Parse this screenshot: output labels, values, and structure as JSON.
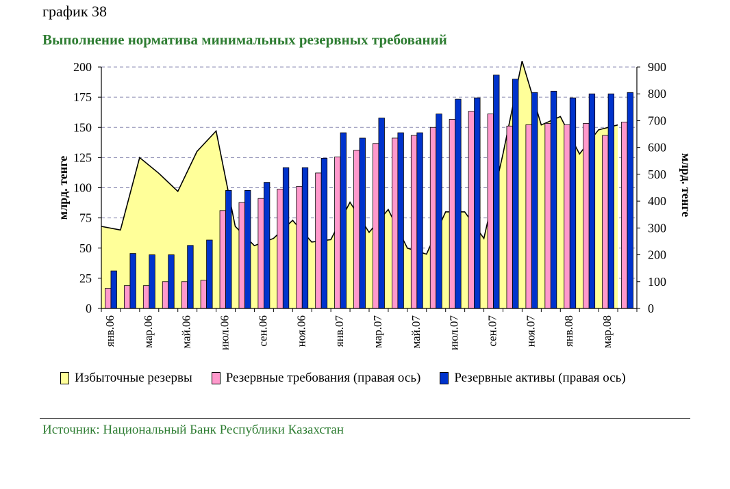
{
  "header": {
    "chart_label": "график 38",
    "title": "Выполнение норматива минимальных резервных требований"
  },
  "footer": {
    "source": "Источник:  Национальный Банк Республики Казахстан"
  },
  "colors": {
    "excess": "#ffff99",
    "requirements": "#ff99cc",
    "assets": "#0033cc",
    "title": "#2e7d32",
    "grid": "#8a8ab0"
  },
  "chart_data": {
    "type": "bar",
    "title": "Выполнение норматива минимальных резервных требований",
    "ylabel_left": "млрд. тенге",
    "ylabel_right": "млрд. тенге",
    "ylim_left": [
      0,
      200
    ],
    "ylim_right": [
      0,
      900
    ],
    "yticks_left": [
      0,
      25,
      50,
      75,
      100,
      125,
      150,
      175,
      200
    ],
    "yticks_right": [
      0,
      100,
      200,
      300,
      400,
      500,
      600,
      700,
      800,
      900
    ],
    "x_tick_labels": [
      "янв.06",
      "мар.06",
      "май.06",
      "июл.06",
      "сен.06",
      "ноя.06",
      "янв.07",
      "мар.07",
      "май.07",
      "июл.07",
      "сен.07",
      "ноя.07",
      "янв.08",
      "мар.08"
    ],
    "legend_position": "bottom",
    "series": [
      {
        "name": "Избыточные резервы",
        "type": "area",
        "axis": "left",
        "values": [
          68,
          65,
          125,
          112,
          97,
          130,
          147,
          68,
          52,
          58,
          73,
          55,
          57,
          88,
          63,
          82,
          50,
          45,
          80,
          80,
          58,
          128,
          205,
          152,
          159,
          128,
          148,
          152
        ]
      },
      {
        "name": "Резервные требования (правая ось)",
        "type": "bar",
        "axis": "right",
        "values": [
          75,
          85,
          85,
          100,
          100,
          105,
          365,
          395,
          410,
          445,
          455,
          505,
          565,
          590,
          615,
          635,
          645,
          675,
          705,
          735,
          725,
          680,
          685,
          690,
          685,
          690,
          645,
          695
        ]
      },
      {
        "name": "Резервные активы (правая ось)",
        "type": "bar",
        "axis": "right",
        "values": [
          140,
          205,
          200,
          200,
          235,
          255,
          440,
          440,
          470,
          525,
          525,
          560,
          655,
          635,
          710,
          655,
          655,
          725,
          780,
          785,
          870,
          855,
          805,
          810,
          785,
          800,
          800,
          805
        ]
      }
    ]
  }
}
